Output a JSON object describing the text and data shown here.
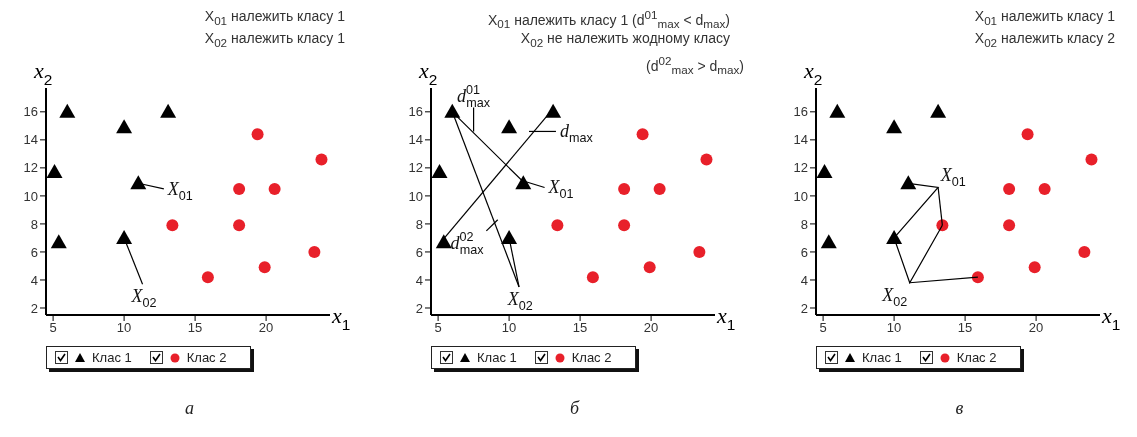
{
  "chart_data": [
    {
      "type": "scatter",
      "title": "X$_{01}$ належить класу 1",
      "subtitle": "X$_{02}$ належить класу 1",
      "xlabel": "x$_{1}$",
      "ylabel": "x$_{2}$",
      "xlim": [
        4.5,
        24.5
      ],
      "ylim": [
        1.5,
        17.7
      ],
      "xticks": [
        5,
        10,
        15,
        20
      ],
      "yticks": [
        2,
        4,
        6,
        8,
        10,
        12,
        14,
        16
      ],
      "legend": "bottom",
      "series": [
        {
          "name": "Клас 1",
          "marker": "triangle",
          "color": "#000000",
          "x": [
            6,
            10,
            13.1,
            5.1,
            11,
            5.4,
            10
          ],
          "values": [
            16,
            14.9,
            16,
            11.7,
            10.9,
            6.7,
            7
          ]
        },
        {
          "name": "Клас 2",
          "marker": "circle",
          "color": "#e8202a",
          "x": [
            19.4,
            23.9,
            18.1,
            20.6,
            13.4,
            18.1,
            23.4,
            19.9,
            15.9
          ],
          "values": [
            14.4,
            12.6,
            10.5,
            10.5,
            7.9,
            7.9,
            6,
            4.9,
            4.2
          ]
        },
        {
          "type": "line",
          "color": "#000000",
          "x": [
            11,
            12.8
          ],
          "values": [
            10.9,
            10.5
          ]
        },
        {
          "type": "line",
          "color": "#000000",
          "x": [
            10,
            11.3
          ],
          "values": [
            7,
            3.7
          ]
        }
      ],
      "annotations": [
        {
          "text": "X$_{01}$",
          "x": 12.8,
          "y": 10.5
        },
        {
          "text": "X$_{02}$",
          "x": 11.3,
          "y": 3.7
        },
        "а"
      ]
    },
    {
      "type": "scatter",
      "title": "X$_{01}$ належить класу 1 (d$^{01}$$_{max}$ < d$_{max}$)",
      "subtitle": "X$_{02}$ не належить жодному класу",
      "xlabel": "x$_{1}$",
      "ylabel": "x$_{2}$",
      "xlim": [
        4.5,
        24.5
      ],
      "ylim": [
        1.5,
        17.7
      ],
      "xticks": [
        5,
        10,
        15,
        20
      ],
      "yticks": [
        2,
        4,
        6,
        8,
        10,
        12,
        14,
        16
      ],
      "legend": "bottom",
      "series": [
        {
          "name": "Клас 1",
          "marker": "triangle",
          "color": "#000000",
          "x": [
            6,
            10,
            13.1,
            5.1,
            11,
            5.4,
            10
          ],
          "values": [
            16,
            14.9,
            16,
            11.7,
            10.9,
            6.7,
            7
          ]
        },
        {
          "name": "Клас 2",
          "marker": "circle",
          "color": "#e8202a",
          "x": [
            19.4,
            23.9,
            18.1,
            20.6,
            13.4,
            18.1,
            23.4,
            19.9,
            15.9
          ],
          "values": [
            14.4,
            12.6,
            10.5,
            10.5,
            7.9,
            7.9,
            6,
            4.9,
            4.2
          ]
        },
        {
          "type": "line",
          "color": "#000000",
          "x": [
            6,
            10.7
          ],
          "values": [
            16,
            3.5
          ]
        },
        {
          "type": "line",
          "color": "#000000",
          "x": [
            10,
            10.7
          ],
          "values": [
            7,
            3.5
          ]
        },
        {
          "type": "line",
          "color": "#000000",
          "x": [
            6,
            10.9,
            12.5
          ],
          "values": [
            16,
            11.1,
            10.6
          ]
        },
        {
          "type": "line",
          "color": "#000000",
          "x": [
            5.2,
            13
          ],
          "values": [
            6.7,
            16.1
          ]
        },
        {
          "type": "line",
          "color": "#000000",
          "x": [
            7.5,
            7.5
          ],
          "values": [
            14.6,
            16.3
          ]
        },
        {
          "type": "line",
          "color": "#000000",
          "x": [
            11.4,
            13.3
          ],
          "values": [
            14.6,
            14.6
          ]
        },
        {
          "type": "line",
          "color": "#000000",
          "x": [
            9.2,
            8.4
          ],
          "values": [
            8.3,
            7.5
          ]
        }
      ],
      "annotations": [
        {
          "text": "X$_{01}$",
          "x": 12.5,
          "y": 10.6
        },
        {
          "text": "X$_{02}$",
          "x": 10.7,
          "y": 3.5
        },
        {
          "text": "d$^{01}$$_{max}$",
          "x": 7.5,
          "y": 16.3
        },
        {
          "text": "d$_{max}$",
          "x": 13.3,
          "y": 14.6
        },
        {
          "text": "d$^{02}$$_{max}$",
          "x": 8.4,
          "y": 7.5
        },
        "(d$^{02}$$_{max}$ > d$_{max}$)",
        "б"
      ]
    },
    {
      "type": "scatter",
      "title": "X$_{01}$ належить класу 1",
      "subtitle": "X$_{02}$ належить класу 2",
      "xlabel": "x$_{1}$",
      "ylabel": "x$_{2}$",
      "xlim": [
        4.5,
        24.5
      ],
      "ylim": [
        1.5,
        17.7
      ],
      "xticks": [
        5,
        10,
        15,
        20
      ],
      "yticks": [
        2,
        4,
        6,
        8,
        10,
        12,
        14,
        16
      ],
      "legend": "bottom",
      "series": [
        {
          "name": "Клас 1",
          "marker": "triangle",
          "color": "#000000",
          "x": [
            6,
            10,
            13.1,
            5.1,
            11,
            5.4,
            10
          ],
          "values": [
            16,
            14.9,
            16,
            11.7,
            10.9,
            6.7,
            7
          ]
        },
        {
          "name": "Клас 2",
          "marker": "circle",
          "color": "#e8202a",
          "x": [
            19.4,
            23.9,
            18.1,
            20.6,
            13.4,
            18.1,
            23.4,
            19.9,
            15.9
          ],
          "values": [
            14.4,
            12.6,
            10.5,
            10.5,
            7.9,
            7.9,
            6,
            4.9,
            4.2
          ]
        },
        {
          "type": "line",
          "color": "#000000",
          "x": [
            11,
            13.1,
            10
          ],
          "values": [
            10.9,
            10.6,
            7
          ]
        },
        {
          "type": "line",
          "color": "#000000",
          "x": [
            13.1,
            13.4
          ],
          "values": [
            10.6,
            7.9
          ]
        },
        {
          "type": "line",
          "color": "#000000",
          "x": [
            10,
            11.1,
            13.4
          ],
          "values": [
            7,
            3.8,
            7.9
          ]
        },
        {
          "type": "line",
          "color": "#000000",
          "x": [
            11.1,
            15.9
          ],
          "values": [
            3.8,
            4.2
          ]
        }
      ],
      "annotations": [
        {
          "text": "X$_{01}$",
          "x": 13.1,
          "y": 10.6
        },
        {
          "text": "X$_{02}$",
          "x": 11.1,
          "y": 3.8
        },
        "в"
      ]
    }
  ]
}
